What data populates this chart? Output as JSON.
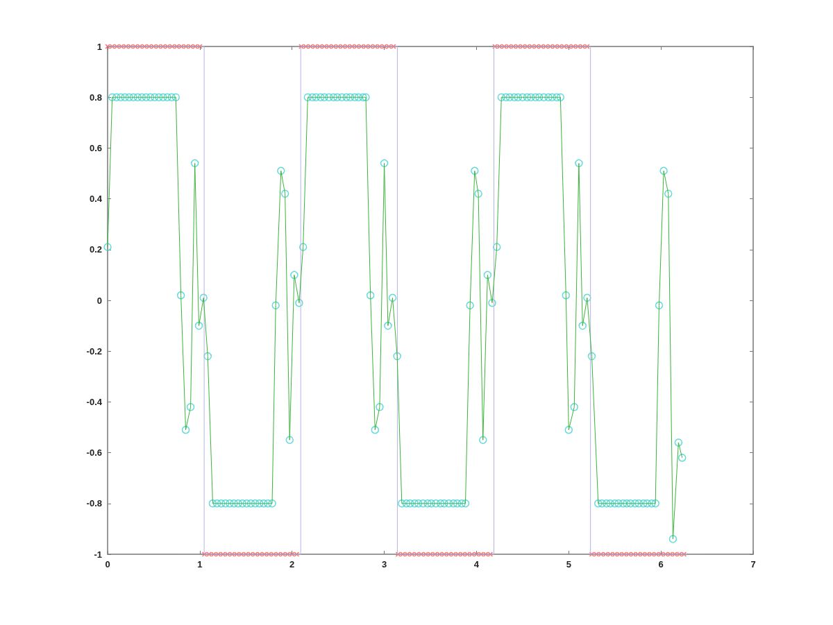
{
  "chart_data": {
    "type": "line",
    "xlim": [
      0,
      7
    ],
    "xticks": [
      0,
      1,
      2,
      3,
      4,
      5,
      6,
      7
    ],
    "ylim": [
      -1,
      1
    ],
    "yticks": [
      -1,
      -0.8,
      -0.6,
      -0.4,
      -0.2,
      0,
      0.2,
      0.4,
      0.6,
      0.8,
      1
    ],
    "grid": false,
    "series": [
      {
        "color": "#b4b4e6",
        "marker": "none",
        "x": [
          0,
          1.047,
          1.047,
          2.094,
          2.094,
          3.142,
          3.142,
          4.189,
          4.189,
          5.236,
          5.236,
          6.283
        ],
        "values": [
          1,
          1,
          -1,
          -1,
          1,
          1,
          -1,
          -1,
          1,
          1,
          -1,
          -1
        ]
      },
      {
        "type": "scatter",
        "color": "#ff4a4a",
        "marker": "cross",
        "x": [
          0,
          0.05,
          0.1,
          0.15,
          0.2,
          0.25,
          0.3,
          0.35,
          0.4,
          0.45,
          0.5,
          0.55,
          0.6,
          0.65,
          0.7,
          0.75,
          0.8,
          0.85,
          0.9,
          0.95,
          1,
          1.05,
          1.1,
          1.15,
          1.2,
          1.25,
          1.3,
          1.35,
          1.4,
          1.45,
          1.5,
          1.55,
          1.6,
          1.65,
          1.7,
          1.75,
          1.8,
          1.85,
          1.9,
          1.95,
          2,
          2.05,
          2.1,
          2.15,
          2.2,
          2.25,
          2.3,
          2.35,
          2.4,
          2.45,
          2.5,
          2.55,
          2.6,
          2.65,
          2.7,
          2.75,
          2.8,
          2.85,
          2.9,
          2.95,
          3,
          3.05,
          3.1,
          3.15,
          3.2,
          3.25,
          3.3,
          3.35,
          3.4,
          3.45,
          3.5,
          3.55,
          3.6,
          3.65,
          3.7,
          3.75,
          3.8,
          3.85,
          3.9,
          3.95,
          4,
          4.05,
          4.1,
          4.15,
          4.2,
          4.25,
          4.3,
          4.35,
          4.4,
          4.45,
          4.5,
          4.55,
          4.6,
          4.65,
          4.7,
          4.75,
          4.8,
          4.85,
          4.9,
          4.95,
          5,
          5.05,
          5.1,
          5.15,
          5.2,
          5.25,
          5.3,
          5.35,
          5.4,
          5.45,
          5.5,
          5.55,
          5.6,
          5.65,
          5.7,
          5.75,
          5.8,
          5.85,
          5.9,
          5.95,
          6,
          6.05,
          6.1,
          6.15,
          6.2,
          6.25
        ],
        "values": [
          1,
          1,
          1,
          1,
          1,
          1,
          1,
          1,
          1,
          1,
          1,
          1,
          1,
          1,
          1,
          1,
          1,
          1,
          1,
          1,
          1,
          -1,
          -1,
          -1,
          -1,
          -1,
          -1,
          -1,
          -1,
          -1,
          -1,
          -1,
          -1,
          -1,
          -1,
          -1,
          -1,
          -1,
          -1,
          -1,
          -1,
          -1,
          1,
          1,
          1,
          1,
          1,
          1,
          1,
          1,
          1,
          1,
          1,
          1,
          1,
          1,
          1,
          1,
          1,
          1,
          1,
          1,
          1,
          -1,
          -1,
          -1,
          -1,
          -1,
          -1,
          -1,
          -1,
          -1,
          -1,
          -1,
          -1,
          -1,
          -1,
          -1,
          -1,
          -1,
          -1,
          -1,
          -1,
          -1,
          1,
          1,
          1,
          1,
          1,
          1,
          1,
          1,
          1,
          1,
          1,
          1,
          1,
          1,
          1,
          1,
          1,
          1,
          1,
          1,
          1,
          -1,
          -1,
          -1,
          -1,
          -1,
          -1,
          -1,
          -1,
          -1,
          -1,
          -1,
          -1,
          -1,
          -1,
          -1,
          -1,
          -1,
          -1,
          -1,
          -1,
          -1
        ]
      },
      {
        "color": "#3cb43c",
        "marker": "none",
        "x": [
          0,
          0.05,
          0.096,
          0.142,
          0.188,
          0.234,
          0.28,
          0.326,
          0.372,
          0.418,
          0.464,
          0.51,
          0.556,
          0.602,
          0.648,
          0.694,
          0.74,
          0.795,
          0.847,
          0.9,
          0.946,
          0.99,
          1.04,
          1.086,
          1.14,
          1.186,
          1.232,
          1.278,
          1.324,
          1.37,
          1.416,
          1.462,
          1.508,
          1.554,
          1.6,
          1.646,
          1.692,
          1.738,
          1.784,
          1.823,
          1.88,
          1.924,
          1.974,
          2.024,
          2.077,
          2.12,
          2.17,
          2.22,
          2.26,
          2.31,
          2.35,
          2.4,
          2.45,
          2.49,
          2.54,
          2.59,
          2.63,
          2.68,
          2.72,
          2.77,
          2.8,
          2.85,
          2.9,
          2.95,
          3,
          3.04,
          3.09,
          3.14,
          3.19,
          3.24,
          3.28,
          3.33,
          3.37,
          3.42,
          3.47,
          3.51,
          3.56,
          3.61,
          3.65,
          3.7,
          3.75,
          3.79,
          3.84,
          3.88,
          3.93,
          3.98,
          4.02,
          4.07,
          4.12,
          4.17,
          4.22,
          4.27,
          4.32,
          4.36,
          4.41,
          4.45,
          4.5,
          4.55,
          4.59,
          4.64,
          4.68,
          4.73,
          4.78,
          4.82,
          4.87,
          4.91,
          4.97,
          5,
          5.06,
          5.11,
          5.15,
          5.2,
          5.25,
          5.32,
          5.36,
          5.41,
          5.45,
          5.5,
          5.54,
          5.59,
          5.63,
          5.67,
          5.72,
          5.76,
          5.81,
          5.85,
          5.9,
          5.94,
          5.98,
          6.03,
          6.08,
          6.13,
          6.19,
          6.23
        ],
        "values": [
          0.21,
          0.8,
          0.8,
          0.8,
          0.8,
          0.8,
          0.8,
          0.8,
          0.8,
          0.8,
          0.8,
          0.8,
          0.8,
          0.8,
          0.8,
          0.8,
          0.8,
          0.02,
          -0.51,
          -0.42,
          0.54,
          -0.1,
          0.01,
          -0.22,
          -0.8,
          -0.8,
          -0.8,
          -0.8,
          -0.8,
          -0.8,
          -0.8,
          -0.8,
          -0.8,
          -0.8,
          -0.8,
          -0.8,
          -0.8,
          -0.8,
          -0.8,
          -0.02,
          0.51,
          0.42,
          -0.55,
          0.1,
          -0.01,
          0.21,
          0.8,
          0.8,
          0.8,
          0.8,
          0.8,
          0.8,
          0.8,
          0.8,
          0.8,
          0.8,
          0.8,
          0.8,
          0.8,
          0.8,
          0.8,
          0.02,
          -0.51,
          -0.42,
          0.54,
          -0.1,
          0.01,
          -0.22,
          -0.8,
          -0.8,
          -0.8,
          -0.8,
          -0.8,
          -0.8,
          -0.8,
          -0.8,
          -0.8,
          -0.8,
          -0.8,
          -0.8,
          -0.8,
          -0.8,
          -0.8,
          -0.8,
          -0.02,
          0.51,
          0.42,
          -0.55,
          0.1,
          -0.01,
          0.21,
          0.8,
          0.8,
          0.8,
          0.8,
          0.8,
          0.8,
          0.8,
          0.8,
          0.8,
          0.8,
          0.8,
          0.8,
          0.8,
          0.8,
          0.8,
          0.02,
          -0.51,
          -0.42,
          0.54,
          -0.1,
          0.01,
          -0.22,
          -0.8,
          -0.8,
          -0.8,
          -0.8,
          -0.8,
          -0.8,
          -0.8,
          -0.8,
          -0.8,
          -0.8,
          -0.8,
          -0.8,
          -0.8,
          -0.8,
          -0.8,
          -0.02,
          0.51,
          0.42,
          -0.94,
          -0.56,
          -0.62
        ]
      },
      {
        "type": "scatter",
        "color": "#40d0d0",
        "marker": "circle",
        "x": [
          0,
          0.05,
          0.096,
          0.142,
          0.188,
          0.234,
          0.28,
          0.326,
          0.372,
          0.418,
          0.464,
          0.51,
          0.556,
          0.602,
          0.648,
          0.694,
          0.74,
          0.795,
          0.847,
          0.9,
          0.946,
          0.99,
          1.04,
          1.086,
          1.14,
          1.186,
          1.232,
          1.278,
          1.324,
          1.37,
          1.416,
          1.462,
          1.508,
          1.554,
          1.6,
          1.646,
          1.692,
          1.738,
          1.784,
          1.823,
          1.88,
          1.924,
          1.974,
          2.024,
          2.077,
          2.12,
          2.17,
          2.22,
          2.26,
          2.31,
          2.35,
          2.4,
          2.45,
          2.49,
          2.54,
          2.59,
          2.63,
          2.68,
          2.72,
          2.77,
          2.8,
          2.85,
          2.9,
          2.95,
          3,
          3.04,
          3.09,
          3.14,
          3.19,
          3.24,
          3.28,
          3.33,
          3.37,
          3.42,
          3.47,
          3.51,
          3.56,
          3.61,
          3.65,
          3.7,
          3.75,
          3.79,
          3.84,
          3.88,
          3.93,
          3.98,
          4.02,
          4.07,
          4.12,
          4.17,
          4.22,
          4.27,
          4.32,
          4.36,
          4.41,
          4.45,
          4.5,
          4.55,
          4.59,
          4.64,
          4.68,
          4.73,
          4.78,
          4.82,
          4.87,
          4.91,
          4.97,
          5,
          5.06,
          5.11,
          5.15,
          5.2,
          5.25,
          5.32,
          5.36,
          5.41,
          5.45,
          5.5,
          5.54,
          5.59,
          5.63,
          5.67,
          5.72,
          5.76,
          5.81,
          5.85,
          5.9,
          5.94,
          5.98,
          6.03,
          6.08,
          6.13,
          6.19,
          6.23
        ],
        "values": [
          0.21,
          0.8,
          0.8,
          0.8,
          0.8,
          0.8,
          0.8,
          0.8,
          0.8,
          0.8,
          0.8,
          0.8,
          0.8,
          0.8,
          0.8,
          0.8,
          0.8,
          0.02,
          -0.51,
          -0.42,
          0.54,
          -0.1,
          0.01,
          -0.22,
          -0.8,
          -0.8,
          -0.8,
          -0.8,
          -0.8,
          -0.8,
          -0.8,
          -0.8,
          -0.8,
          -0.8,
          -0.8,
          -0.8,
          -0.8,
          -0.8,
          -0.8,
          -0.02,
          0.51,
          0.42,
          -0.55,
          0.1,
          -0.01,
          0.21,
          0.8,
          0.8,
          0.8,
          0.8,
          0.8,
          0.8,
          0.8,
          0.8,
          0.8,
          0.8,
          0.8,
          0.8,
          0.8,
          0.8,
          0.8,
          0.02,
          -0.51,
          -0.42,
          0.54,
          -0.1,
          0.01,
          -0.22,
          -0.8,
          -0.8,
          -0.8,
          -0.8,
          -0.8,
          -0.8,
          -0.8,
          -0.8,
          -0.8,
          -0.8,
          -0.8,
          -0.8,
          -0.8,
          -0.8,
          -0.8,
          -0.8,
          -0.02,
          0.51,
          0.42,
          -0.55,
          0.1,
          -0.01,
          0.21,
          0.8,
          0.8,
          0.8,
          0.8,
          0.8,
          0.8,
          0.8,
          0.8,
          0.8,
          0.8,
          0.8,
          0.8,
          0.8,
          0.8,
          0.8,
          0.02,
          -0.51,
          -0.42,
          0.54,
          -0.1,
          0.01,
          -0.22,
          -0.8,
          -0.8,
          -0.8,
          -0.8,
          -0.8,
          -0.8,
          -0.8,
          -0.8,
          -0.8,
          -0.8,
          -0.8,
          -0.8,
          -0.8,
          -0.8,
          -0.8,
          -0.02,
          0.51,
          0.42,
          -0.94,
          -0.56,
          -0.62
        ]
      }
    ]
  }
}
